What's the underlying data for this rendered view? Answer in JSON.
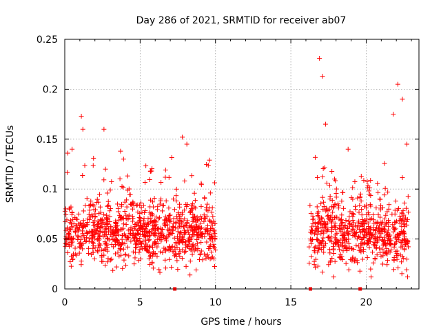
{
  "chart_data": {
    "type": "scatter",
    "title": "Day 286 of 2021, SRMTID for receiver ab07",
    "xlabel": "GPS time / hours",
    "ylabel": "SRMTID / TECUs",
    "xlim": [
      0,
      23.5
    ],
    "ylim": [
      0,
      0.25
    ],
    "x_ticks": [
      0,
      5,
      10,
      15,
      20
    ],
    "y_ticks": [
      0,
      0.05,
      0.1,
      0.15,
      0.2,
      0.25
    ],
    "x_tick_labels": [
      "0",
      "5",
      "10",
      "15",
      "20"
    ],
    "y_tick_labels": [
      "0",
      "0.05",
      "0.1",
      "0.15",
      "0.2",
      "0.25"
    ],
    "grid": true,
    "marker": "+",
    "color": "#ff0000",
    "zero_markers_x": [
      7.3,
      16.3,
      19.6
    ],
    "series": [
      {
        "name": "ab07",
        "segments": [
          {
            "x_start": 0.0,
            "x_end": 10.0
          },
          {
            "x_start": 16.2,
            "x_end": 22.8
          }
        ],
        "x": [
          0.1,
          0.2,
          0.3,
          0.5,
          0.7,
          0.9,
          1.1,
          1.2,
          1.5,
          1.8,
          2.0,
          2.3,
          2.6,
          2.7,
          2.9,
          3.2,
          3.5,
          3.7,
          3.9,
          4.2,
          4.5,
          4.8,
          5.1,
          5.4,
          5.7,
          6.0,
          6.3,
          6.6,
          6.9,
          7.2,
          7.5,
          7.8,
          8.1,
          8.4,
          8.7,
          9.0,
          9.3,
          9.6,
          9.9,
          16.3,
          16.5,
          16.7,
          16.9,
          17.1,
          17.3,
          17.6,
          17.9,
          18.2,
          18.5,
          18.8,
          19.1,
          19.4,
          19.7,
          20.0,
          20.3,
          20.6,
          20.9,
          21.2,
          21.5,
          21.8,
          22.1,
          22.4,
          22.7
        ],
        "y": [
          0.045,
          0.136,
          0.06,
          0.05,
          0.035,
          0.065,
          0.173,
          0.16,
          0.07,
          0.055,
          0.05,
          0.045,
          0.16,
          0.12,
          0.06,
          0.05,
          0.085,
          0.138,
          0.13,
          0.07,
          0.08,
          0.05,
          0.045,
          0.04,
          0.118,
          0.06,
          0.05,
          0.065,
          0.04,
          0.09,
          0.07,
          0.152,
          0.145,
          0.05,
          0.04,
          0.035,
          0.06,
          0.129,
          0.03,
          0.05,
          0.07,
          0.06,
          0.231,
          0.213,
          0.165,
          0.09,
          0.11,
          0.07,
          0.05,
          0.14,
          0.06,
          0.05,
          0.045,
          0.06,
          0.055,
          0.05,
          0.09,
          0.06,
          0.05,
          0.175,
          0.205,
          0.19,
          0.145
        ]
      }
    ]
  }
}
